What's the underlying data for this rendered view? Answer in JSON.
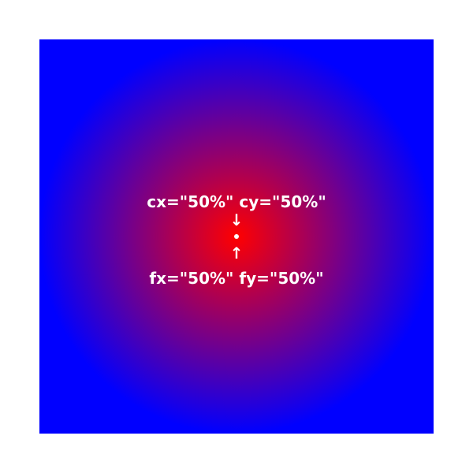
{
  "gradient": {
    "center_color": "#ff0000",
    "edge_color": "#0000ff",
    "center_point_color": "#ffffff"
  },
  "labels": {
    "center": "cx=\"50%\" cy=\"50%\"",
    "focal": "fx=\"50%\" fy=\"50%\""
  },
  "arrows": {
    "down": "↓",
    "up": "↑"
  }
}
